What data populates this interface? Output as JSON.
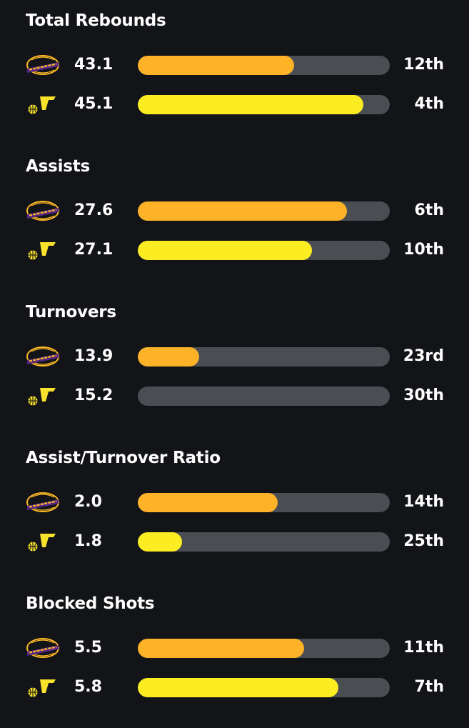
{
  "colors": {
    "background": "#121417",
    "track": "#4a4e53",
    "lakers_bar": "#fdb227",
    "jazz_bar": "#fced22",
    "lakers_logo_purple": "#552583",
    "lakers_logo_gold": "#fdb927",
    "jazz_logo_yellow": "#f9e22b"
  },
  "icons": {
    "lakers": "lakers-logo-icon",
    "jazz": "jazz-logo-icon"
  },
  "sections": [
    {
      "title": "Total Rebounds",
      "rows": [
        {
          "team": "lakers",
          "value": "43.1",
          "rank": "12th",
          "fill": 0.62
        },
        {
          "team": "jazz",
          "value": "45.1",
          "rank": "4th",
          "fill": 0.895
        }
      ]
    },
    {
      "title": "Assists",
      "rows": [
        {
          "team": "lakers",
          "value": "27.6",
          "rank": "6th",
          "fill": 0.83
        },
        {
          "team": "jazz",
          "value": "27.1",
          "rank": "10th",
          "fill": 0.69
        }
      ]
    },
    {
      "title": "Turnovers",
      "rows": [
        {
          "team": "lakers",
          "value": "13.9",
          "rank": "23rd",
          "fill": 0.245
        },
        {
          "team": "jazz",
          "value": "15.2",
          "rank": "30th",
          "fill": 0
        }
      ]
    },
    {
      "title": "Assist/Turnover Ratio",
      "rows": [
        {
          "team": "lakers",
          "value": "2.0",
          "rank": "14th",
          "fill": 0.555
        },
        {
          "team": "jazz",
          "value": "1.8",
          "rank": "25th",
          "fill": 0.175
        }
      ]
    },
    {
      "title": "Blocked Shots",
      "rows": [
        {
          "team": "lakers",
          "value": "5.5",
          "rank": "11th",
          "fill": 0.66
        },
        {
          "team": "jazz",
          "value": "5.8",
          "rank": "7th",
          "fill": 0.795
        }
      ]
    }
  ]
}
